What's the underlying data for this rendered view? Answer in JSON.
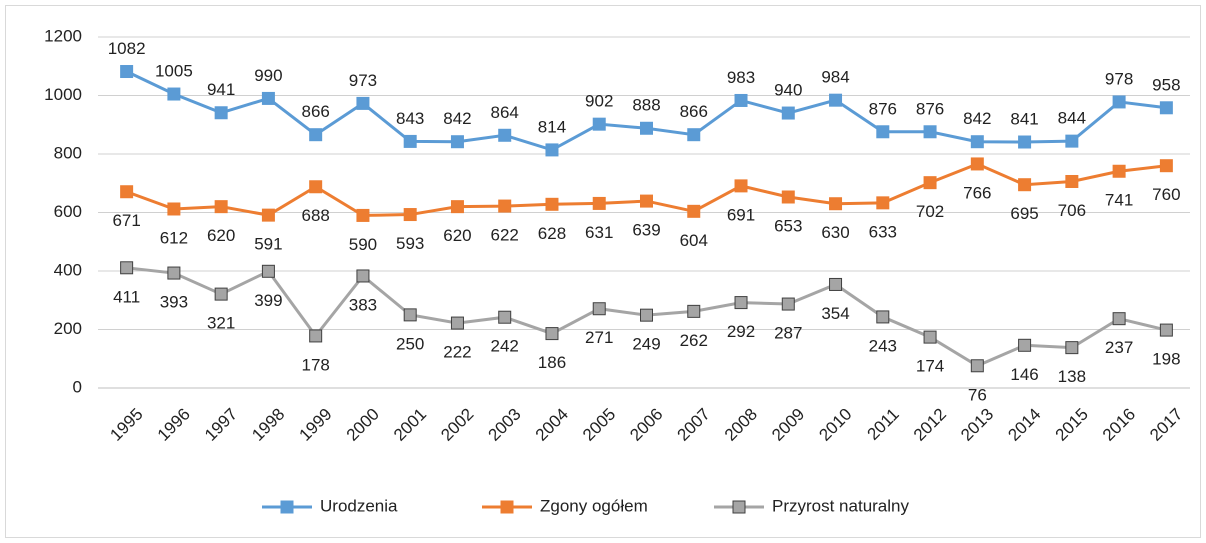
{
  "chart_data": {
    "type": "line",
    "categories": [
      "1995",
      "1996",
      "1997",
      "1998",
      "1999",
      "2000",
      "2001",
      "2002",
      "2003",
      "2004",
      "2005",
      "2006",
      "2007",
      "2008",
      "2009",
      "2010",
      "2011",
      "2012",
      "2013",
      "2014",
      "2015",
      "2016",
      "2017"
    ],
    "series": [
      {
        "name": "Urodzenia",
        "color": "#5b9bd5",
        "values": [
          1082,
          1005,
          941,
          990,
          866,
          973,
          843,
          842,
          864,
          814,
          902,
          888,
          866,
          983,
          940,
          984,
          876,
          876,
          842,
          841,
          844,
          978,
          958
        ]
      },
      {
        "name": "Zgony ogółem",
        "color": "#ed7d31",
        "values": [
          671,
          612,
          620,
          591,
          688,
          590,
          593,
          620,
          622,
          628,
          631,
          639,
          604,
          691,
          653,
          630,
          633,
          702,
          766,
          695,
          706,
          741,
          760
        ]
      },
      {
        "name": "Przyrost naturalny",
        "color": "#a5a5a5",
        "values": [
          411,
          393,
          321,
          399,
          178,
          383,
          250,
          222,
          242,
          186,
          271,
          249,
          262,
          292,
          287,
          354,
          243,
          174,
          76,
          146,
          138,
          237,
          198
        ]
      }
    ],
    "ylim": [
      0,
      1200
    ],
    "yticks": [
      0,
      200,
      400,
      600,
      800,
      1000,
      1200
    ],
    "grid": true,
    "legend": "bottom"
  }
}
